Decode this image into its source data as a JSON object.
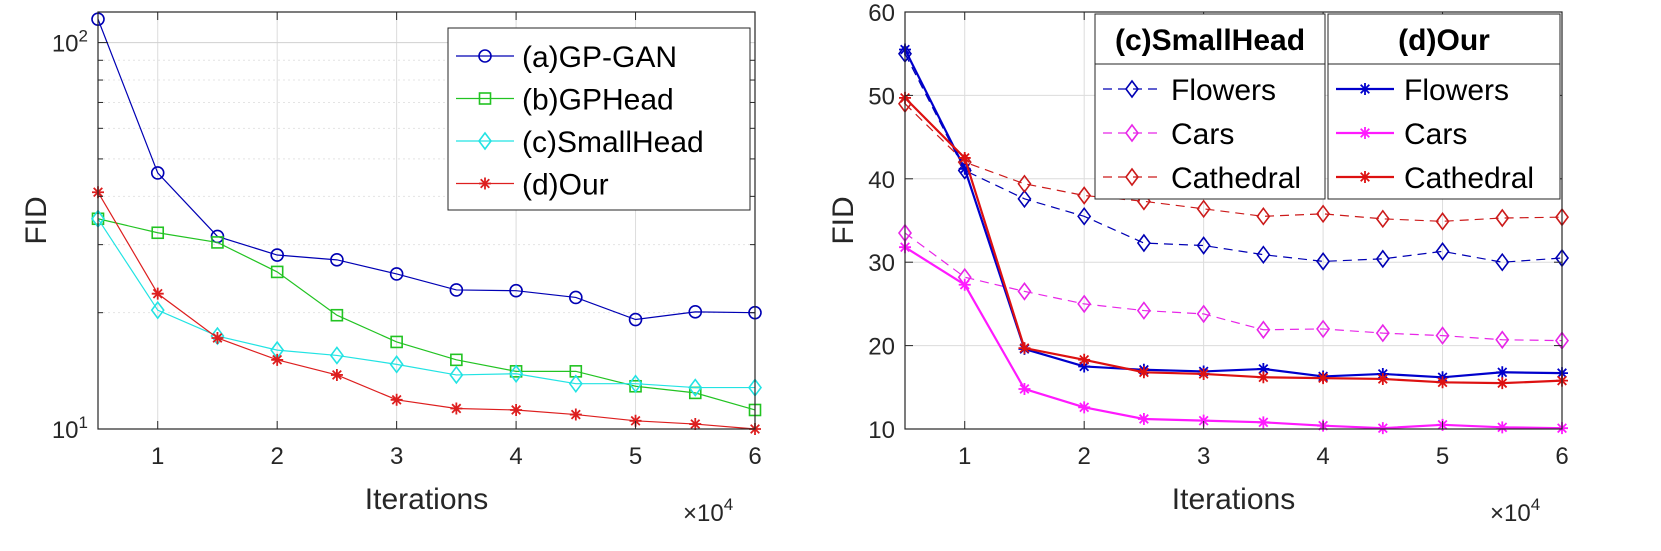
{
  "chart_data": [
    {
      "type": "line",
      "yscale": "log",
      "xlabel": "Iterations",
      "ylabel": "FID",
      "xlim": [
        0.5,
        6
      ],
      "ylim": [
        10,
        120
      ],
      "x_multiplier": "×10",
      "x_multiplier_exp": "4",
      "xticks": [
        1,
        2,
        3,
        4,
        5,
        6
      ],
      "yticks": [
        {
          "value": 10,
          "base": "10",
          "exp": "1"
        },
        {
          "value": 100,
          "base": "10",
          "exp": "2"
        }
      ],
      "x": [
        0.5,
        1,
        1.5,
        2,
        2.5,
        3,
        3.5,
        4,
        4.5,
        5,
        5.5,
        6
      ],
      "grid": true,
      "legend": {
        "position": "top-right"
      },
      "series": [
        {
          "name": "(a)GP-GAN",
          "color": "#0000b4",
          "marker": "circle",
          "dash": false,
          "values": [
            115,
            46,
            31.5,
            28.2,
            27.4,
            25.2,
            22.9,
            22.8,
            21.9,
            19.2,
            20.1,
            20.0
          ]
        },
        {
          "name": "(b)GPHead",
          "color": "#22c322",
          "marker": "square",
          "dash": false,
          "values": [
            35,
            32.2,
            30.4,
            25.5,
            19.7,
            16.8,
            15.1,
            14.1,
            14.1,
            12.9,
            12.4,
            11.2
          ]
        },
        {
          "name": "(c)SmallHead",
          "color": "#22e3e3",
          "marker": "diamond",
          "dash": false,
          "values": [
            35,
            20.3,
            17.4,
            16.0,
            15.5,
            14.7,
            13.8,
            13.9,
            13.1,
            13.1,
            12.8,
            12.8
          ]
        },
        {
          "name": "(d)Our",
          "color": "#dd1f1f",
          "marker": "star",
          "dash": false,
          "values": [
            41,
            22.4,
            17.2,
            15.1,
            13.8,
            11.9,
            11.3,
            11.2,
            10.9,
            10.5,
            10.3,
            10.0
          ]
        }
      ]
    },
    {
      "type": "line",
      "xlabel": "Iterations",
      "ylabel": "FID",
      "xlim": [
        0.5,
        6
      ],
      "ylim": [
        10,
        60
      ],
      "x_multiplier": "×10",
      "x_multiplier_exp": "4",
      "xticks": [
        1,
        2,
        3,
        4,
        5,
        6
      ],
      "yticks": [
        10,
        20,
        30,
        40,
        50,
        60
      ],
      "x": [
        0.5,
        1,
        1.5,
        2,
        2.5,
        3,
        3.5,
        4,
        4.5,
        5,
        5.5,
        6
      ],
      "grid": true,
      "legend": {
        "position": "top-right",
        "groups": [
          "(c)SmallHead",
          "(d)Our"
        ]
      },
      "series": [
        {
          "name": "Flowers",
          "group": "(c)SmallHead",
          "color": "#0000b4",
          "marker": "diamond",
          "dash": true,
          "values": [
            55,
            41,
            37.6,
            35.5,
            32.3,
            32.0,
            30.9,
            30.1,
            30.4,
            31.3,
            30.0,
            30.5
          ]
        },
        {
          "name": "Cars",
          "group": "(c)SmallHead",
          "color": "#e826e8",
          "marker": "diamond",
          "dash": true,
          "values": [
            33.5,
            28.2,
            26.5,
            25.0,
            24.2,
            23.8,
            21.9,
            22.0,
            21.5,
            21.2,
            20.7,
            20.6
          ]
        },
        {
          "name": "Cathedral",
          "group": "(c)SmallHead",
          "color": "#cc1a1a",
          "marker": "diamond",
          "dash": true,
          "values": [
            49,
            42,
            39.4,
            38.0,
            37.3,
            36.4,
            35.5,
            35.8,
            35.2,
            34.9,
            35.3,
            35.4
          ]
        },
        {
          "name": "Flowers",
          "group": "(d)Our",
          "color": "#0000cc",
          "marker": "star",
          "dash": false,
          "values": [
            55.5,
            41.2,
            19.6,
            17.5,
            17.1,
            16.9,
            17.2,
            16.3,
            16.6,
            16.2,
            16.8,
            16.7
          ]
        },
        {
          "name": "Cars",
          "group": "(d)Our",
          "color": "#ff1aff",
          "marker": "star",
          "dash": false,
          "values": [
            31.8,
            27.3,
            14.8,
            12.6,
            11.2,
            11.0,
            10.8,
            10.4,
            10.1,
            10.5,
            10.2,
            10.1
          ]
        },
        {
          "name": "Cathedral",
          "group": "(d)Our",
          "color": "#dd1111",
          "marker": "star",
          "dash": false,
          "values": [
            49.7,
            42.5,
            19.7,
            18.3,
            16.8,
            16.6,
            16.2,
            16.1,
            16.0,
            15.6,
            15.5,
            15.8
          ]
        }
      ]
    }
  ]
}
